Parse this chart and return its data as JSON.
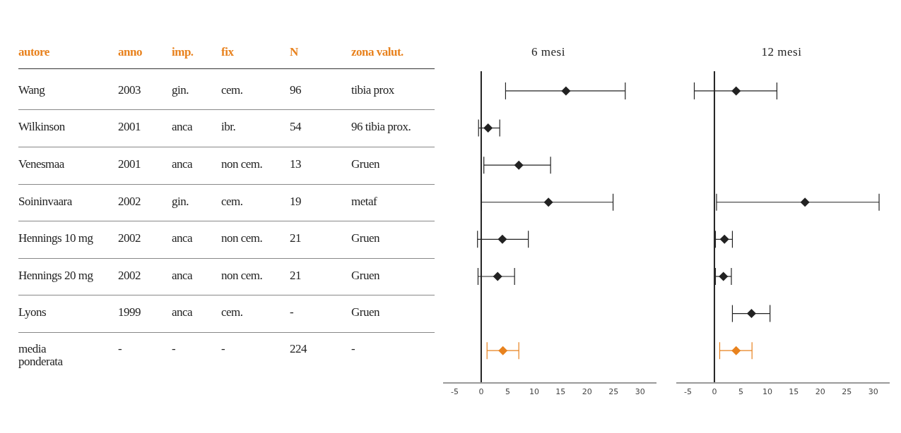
{
  "chart_data": [
    {
      "type": "other",
      "color": "#e8821e",
      "annotations": [
        "autore",
        "anno",
        "imp.",
        "fix",
        "N",
        "zona valut.",
        "Wang",
        "2003",
        "gin.",
        "cem.",
        "96",
        "tibia prox",
        "Wilkinson",
        "2001",
        "anca",
        "ibr.",
        "54",
        "96 tibia prox.",
        "Venesmaa",
        "2001",
        "anca",
        "non cem.",
        "13",
        "Gruen",
        "Soininvaara",
        "2002",
        "gin.",
        "cem.",
        "19",
        "metaf",
        "Hennings 10 mg",
        "2002",
        "anca",
        "non cem.",
        "21",
        "Gruen",
        "Hennings 20 mg",
        "2002",
        "anca",
        "non cem.",
        "21",
        "Gruen",
        "Lyons",
        "1999",
        "anca",
        "cem.",
        "-",
        "Gruen",
        "media ponderata",
        "-",
        "-",
        "-",
        "224",
        "-"
      ]
    },
    {
      "type": "scatter",
      "title": "6 mesi",
      "orientation": "horizontal",
      "tick_labels": "x",
      "marker": "diamond",
      "categories": [
        null,
        null,
        null,
        null,
        null,
        null,
        null,
        null
      ],
      "xlim": [
        -7.2,
        33.1
      ],
      "xticks": [
        -5,
        0,
        5,
        10,
        15,
        20,
        25,
        30
      ],
      "ref_lines": [
        {
          "axis": "x",
          "value": 0
        }
      ],
      "series": [
        {
          "values": [
            16.0,
            1.3,
            7.1,
            12.7,
            4.0,
            3.1,
            null,
            4.1
          ],
          "errors": [
            [
              4.6,
              27.2
            ],
            [
              -0.5,
              3.5
            ],
            [
              0.5,
              13.1
            ],
            [
              0,
              24.9
            ],
            [
              -0.7,
              8.9
            ],
            [
              -0.6,
              6.3
            ],
            null,
            [
              1.1,
              7.1
            ]
          ],
          "colors": [
            "#222222",
            "#222222",
            "#222222",
            "#222222",
            "#222222",
            "#222222",
            null,
            "#e8821e"
          ]
        }
      ]
    },
    {
      "type": "scatter",
      "title": "12 mesi",
      "orientation": "horizontal",
      "tick_labels": "x",
      "marker": "diamond",
      "categories": [
        null,
        null,
        null,
        null,
        null,
        null,
        null,
        null
      ],
      "xlim": [
        -7.2,
        33.1
      ],
      "xticks": [
        -5,
        0,
        5,
        10,
        15,
        20,
        25,
        30
      ],
      "ref_lines": [
        {
          "axis": "x",
          "value": 0
        }
      ],
      "series": [
        {
          "values": [
            4.1,
            null,
            null,
            17.1,
            1.9,
            1.7,
            7.0,
            4.1
          ],
          "errors": [
            [
              -3.8,
              11.8
            ],
            null,
            null,
            [
              0.4,
              31.1
            ],
            [
              0.2,
              3.4
            ],
            [
              0.2,
              3.2
            ],
            [
              3.4,
              10.5
            ],
            [
              1.0,
              7.1
            ]
          ],
          "colors": [
            "#222222",
            null,
            null,
            "#222222",
            "#222222",
            "#222222",
            "#222222",
            "#e8821e"
          ]
        }
      ]
    }
  ]
}
